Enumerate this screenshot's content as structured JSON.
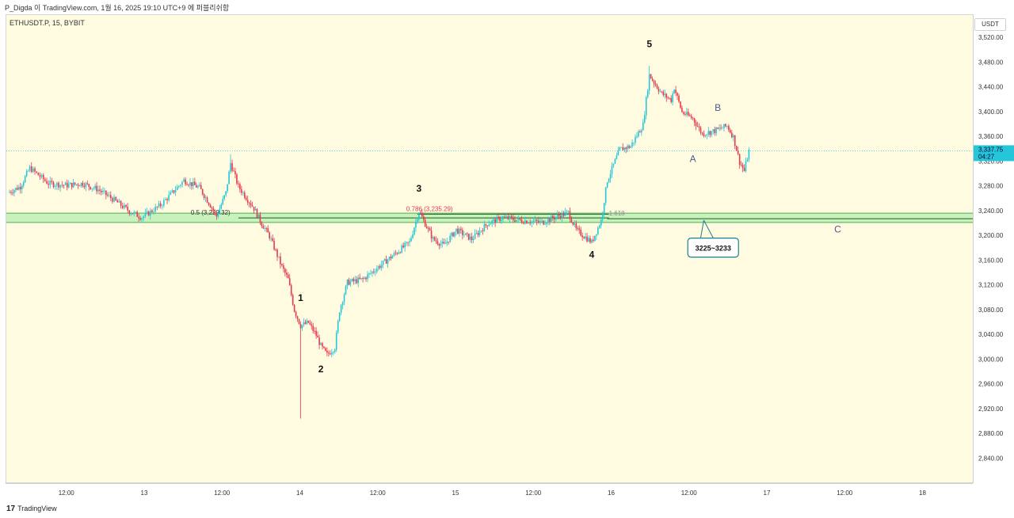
{
  "header": {
    "text": "P_Digda 이 TradingView.com, 1월 16, 2025 19:10 UTC+9 에 퍼블리쉬함"
  },
  "symbol": {
    "text": "ETHUSDT.P, 15, BYBIT"
  },
  "price_scale": {
    "currency": "USDT"
  },
  "footer": {
    "brand": "TradingView",
    "logo_icon": "tradingview-logo-icon"
  },
  "colors": {
    "up": "#26c6da",
    "down": "#e53950",
    "background": "#fffbe0",
    "zone": "#bfeeb6",
    "zone_line": "#4caf50"
  },
  "chart_data": {
    "type": "candlestick",
    "y_min": 2800,
    "y_max": 3560,
    "y_ticks": [
      2840,
      2880,
      2920,
      2960,
      3000,
      3040,
      3080,
      3120,
      3160,
      3200,
      3240,
      3280,
      3320,
      3360,
      3400,
      3440,
      3480,
      3520
    ],
    "x_ticks": [
      {
        "label": "12:00",
        "x": -0.5
      },
      {
        "label": "13",
        "x": 0
      },
      {
        "label": "12:00",
        "x": 0.5
      },
      {
        "label": "14",
        "x": 1
      },
      {
        "label": "12:00",
        "x": 1.5
      },
      {
        "label": "15",
        "x": 2
      },
      {
        "label": "12:00",
        "x": 2.5
      },
      {
        "label": "16",
        "x": 3
      },
      {
        "label": "12:00",
        "x": 3.5
      },
      {
        "label": "17",
        "x": 4
      },
      {
        "label": "12:00",
        "x": 4.5
      },
      {
        "label": "18",
        "x": 5
      }
    ],
    "current_price": {
      "value": 3337.75,
      "label": "3,337.75",
      "countdown": "04:27"
    },
    "price_path": [
      [
        -0.88,
        3270
      ],
      [
        -0.8,
        3280
      ],
      [
        -0.74,
        3310
      ],
      [
        -0.62,
        3285
      ],
      [
        -0.5,
        3282
      ],
      [
        -0.4,
        3285
      ],
      [
        -0.3,
        3275
      ],
      [
        -0.22,
        3262
      ],
      [
        -0.1,
        3240
      ],
      [
        -0.02,
        3230
      ],
      [
        0.1,
        3250
      ],
      [
        0.25,
        3290
      ],
      [
        0.35,
        3278
      ],
      [
        0.42,
        3250
      ],
      [
        0.46,
        3232
      ],
      [
        0.52,
        3270
      ],
      [
        0.55,
        3318
      ],
      [
        0.6,
        3280
      ],
      [
        0.7,
        3245
      ],
      [
        0.75,
        3220
      ],
      [
        0.8,
        3200
      ],
      [
        0.88,
        3150
      ],
      [
        0.92,
        3130
      ],
      [
        0.96,
        3080
      ],
      [
        1.0,
        3055
      ],
      [
        1.05,
        3060
      ],
      [
        1.1,
        3040
      ],
      [
        1.13,
        3022
      ],
      [
        1.17,
        3008
      ],
      [
        1.22,
        3020
      ],
      [
        1.25,
        3080
      ],
      [
        1.3,
        3125
      ],
      [
        1.4,
        3130
      ],
      [
        1.5,
        3150
      ],
      [
        1.6,
        3170
      ],
      [
        1.7,
        3190
      ],
      [
        1.76,
        3240
      ],
      [
        1.8,
        3220
      ],
      [
        1.85,
        3195
      ],
      [
        1.92,
        3185
      ],
      [
        2.0,
        3210
      ],
      [
        2.1,
        3195
      ],
      [
        2.2,
        3220
      ],
      [
        2.3,
        3230
      ],
      [
        2.42,
        3225
      ],
      [
        2.55,
        3222
      ],
      [
        2.65,
        3232
      ],
      [
        2.72,
        3238
      ],
      [
        2.77,
        3210
      ],
      [
        2.82,
        3200
      ],
      [
        2.87,
        3190
      ],
      [
        2.93,
        3225
      ],
      [
        2.97,
        3290
      ],
      [
        3.05,
        3340
      ],
      [
        3.12,
        3345
      ],
      [
        3.2,
        3380
      ],
      [
        3.24,
        3460
      ],
      [
        3.32,
        3430
      ],
      [
        3.38,
        3420
      ],
      [
        3.4,
        3440
      ],
      [
        3.45,
        3400
      ],
      [
        3.52,
        3390
      ],
      [
        3.58,
        3365
      ],
      [
        3.66,
        3370
      ],
      [
        3.74,
        3378
      ],
      [
        3.78,
        3360
      ],
      [
        3.82,
        3320
      ],
      [
        3.85,
        3305
      ],
      [
        3.88,
        3337.75
      ]
    ],
    "wicks": [
      {
        "x": 1.0,
        "low": 2905
      },
      {
        "x": 0.55,
        "high": 3332
      },
      {
        "x": 3.24,
        "high": 3475
      }
    ],
    "support_zone": {
      "low": 3222,
      "high": 3237
    },
    "fib_levels": [
      {
        "label": "0.5 (3,229.32)",
        "value": 3229.32,
        "x_start": 0.6,
        "x_end": 2.98,
        "color": "#333333"
      },
      {
        "label": "0.786 (3,235.29)",
        "value": 3235.29,
        "x_start": 1.75,
        "x_end": 2.98,
        "color": "#e53950"
      },
      {
        "label": "1.618",
        "value": 3228,
        "x_start": 2.97,
        "x_end": 5.36,
        "color": "#888888"
      }
    ],
    "wave_labels": [
      {
        "text": "1",
        "x": 1.0,
        "y": 3095,
        "color": "#111111"
      },
      {
        "text": "2",
        "x": 1.13,
        "y": 2980,
        "color": "#111111"
      },
      {
        "text": "3",
        "x": 1.76,
        "y": 3272,
        "color": "#111111"
      },
      {
        "text": "4",
        "x": 2.87,
        "y": 3165,
        "color": "#111111"
      },
      {
        "text": "5",
        "x": 3.24,
        "y": 3505,
        "color": "#111111"
      },
      {
        "text": "A",
        "x": 3.52,
        "y": 3320,
        "color": "#4a5a8c"
      },
      {
        "text": "B",
        "x": 3.68,
        "y": 3402,
        "color": "#4a5a8c"
      },
      {
        "text": "C",
        "x": 4.45,
        "y": 3206,
        "color": "#4a5a8c"
      }
    ],
    "callout": {
      "text": "3225~3233",
      "x": 3.65,
      "y": 3180,
      "anchor_x": 3.6,
      "anchor_y": 3228
    }
  }
}
